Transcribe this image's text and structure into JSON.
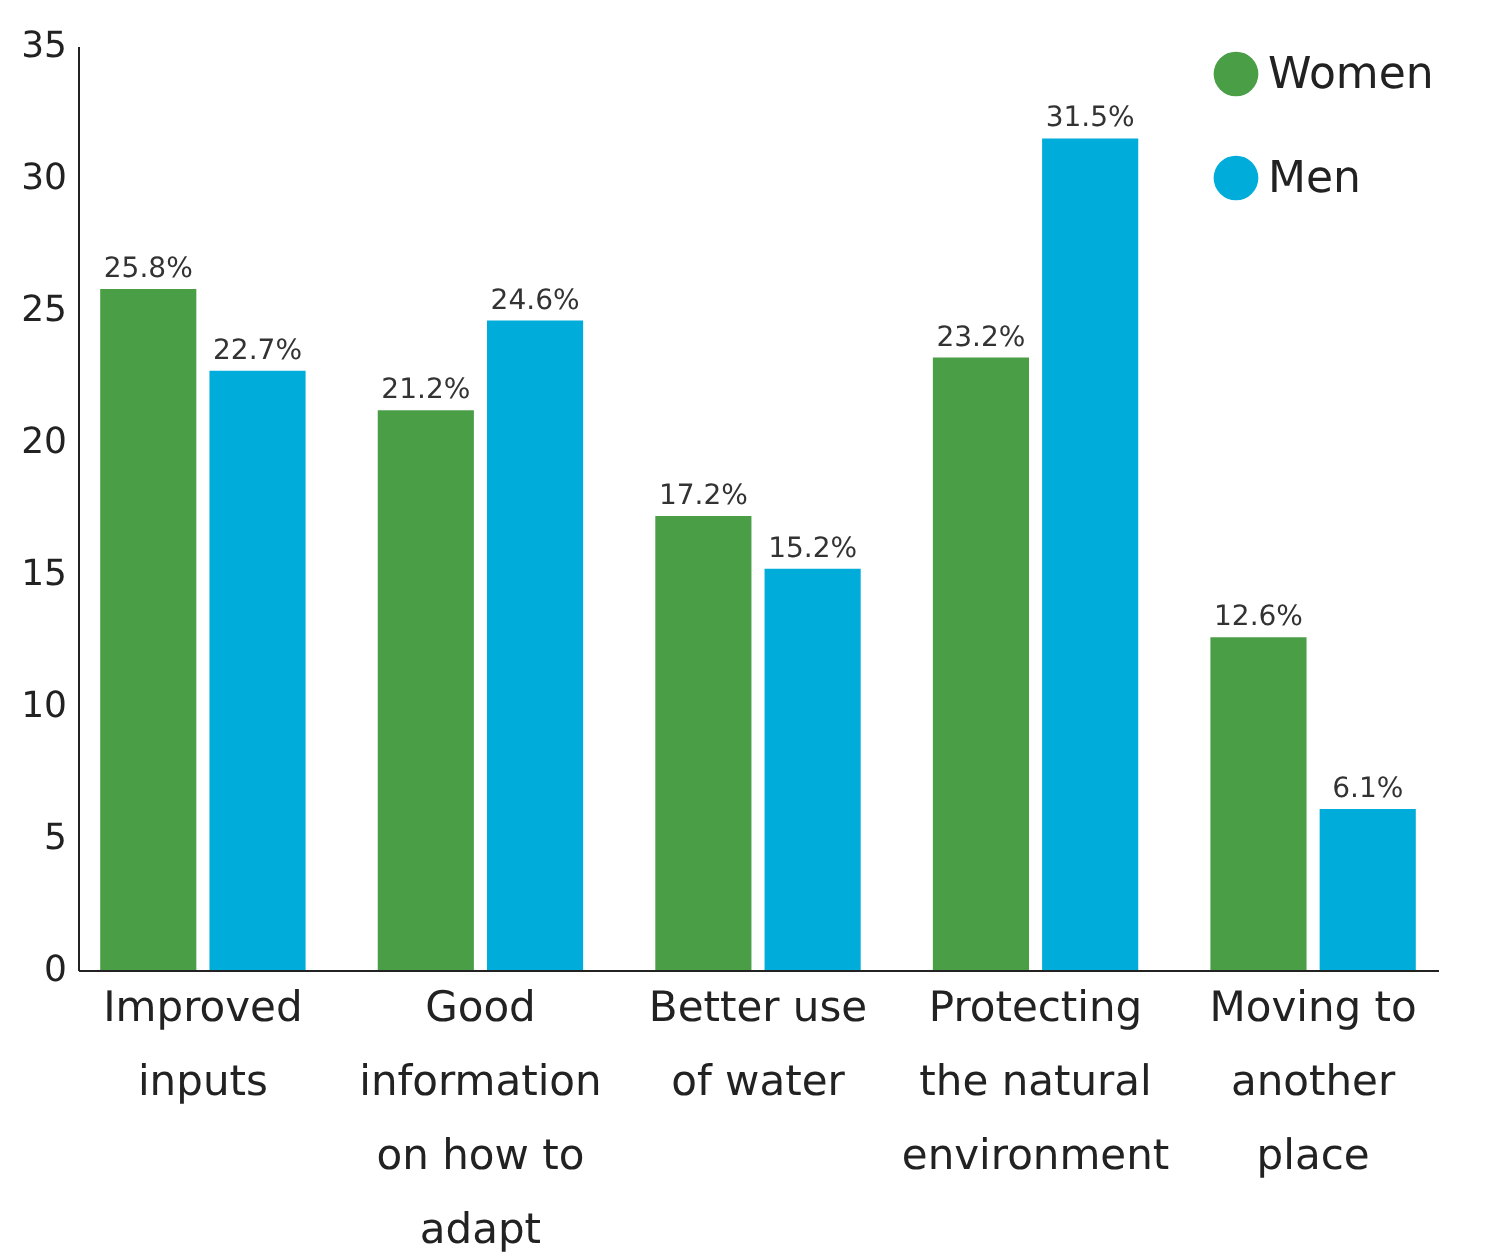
{
  "chart_data": {
    "type": "bar",
    "categories": [
      "Improved inputs",
      "Good information on how to adapt",
      "Better use of water",
      "Protecting the natural environment",
      "Moving to another place"
    ],
    "series": [
      {
        "name": "Women",
        "color": "#4a9e46",
        "values": [
          25.8,
          21.2,
          17.2,
          23.2,
          12.6
        ],
        "value_labels": [
          "25.8%",
          "21.2%",
          "17.2%",
          "23.2%",
          "12.6%"
        ]
      },
      {
        "name": "Men",
        "color": "#00acd9",
        "values": [
          22.7,
          24.6,
          15.2,
          31.5,
          6.1
        ],
        "value_labels": [
          "22.7%",
          "24.6%",
          "15.2%",
          "31.5%",
          "6.1%"
        ]
      }
    ],
    "ylim": [
      0,
      35
    ],
    "yticks": [
      0,
      5,
      10,
      15,
      20,
      25,
      30,
      35
    ],
    "grid": false,
    "legend": "top right"
  }
}
